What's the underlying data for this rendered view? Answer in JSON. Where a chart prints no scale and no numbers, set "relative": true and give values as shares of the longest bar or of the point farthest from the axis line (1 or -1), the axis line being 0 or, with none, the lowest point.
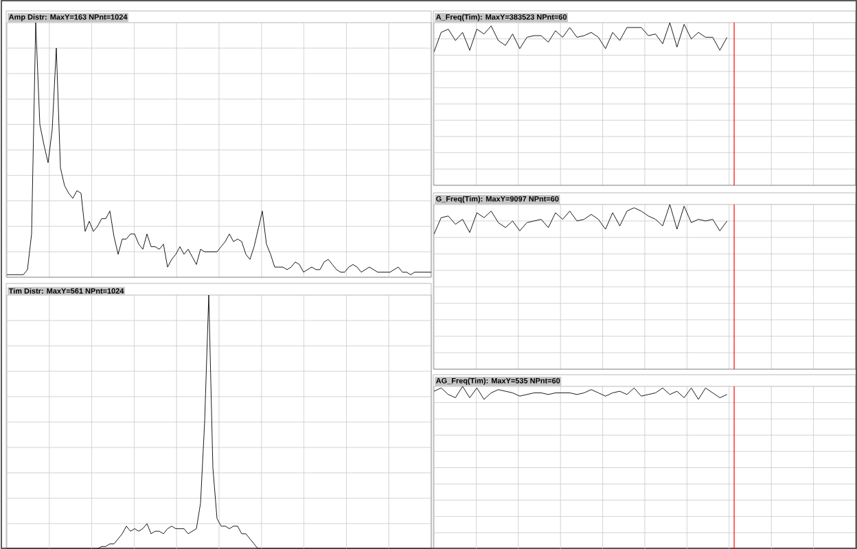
{
  "chart_data": [
    {
      "type": "line",
      "title": "Amp Distr: MaxY=163 NPnt=1024",
      "color": "#000000",
      "grid": true,
      "relative": true,
      "categories": [
        null,
        null,
        null,
        null,
        null,
        null,
        null,
        null,
        null,
        null,
        null,
        null,
        null,
        null,
        null,
        null,
        null,
        null,
        null,
        null,
        null,
        null,
        null,
        null,
        null,
        null,
        null,
        null,
        null,
        null,
        null,
        null,
        null,
        null,
        null,
        null,
        null,
        null,
        null,
        null,
        null,
        null,
        null,
        null,
        null,
        null,
        null,
        null,
        null,
        null,
        null,
        null,
        null,
        null,
        null,
        null,
        null,
        null,
        null,
        null,
        null,
        null,
        null,
        null,
        null,
        null,
        null,
        null,
        null,
        null,
        null,
        null,
        null,
        null,
        null,
        null,
        null,
        null,
        null,
        null,
        null,
        null,
        null,
        null,
        null,
        null,
        null,
        null,
        null,
        null,
        null,
        null,
        null,
        null,
        null,
        null,
        null,
        null,
        null,
        null,
        null,
        null,
        null,
        null
      ],
      "values": [
        0.01,
        0.01,
        0.01,
        0.01,
        0.01,
        0.03,
        0.17,
        1,
        0.6,
        0.52,
        0.45,
        0.58,
        0.9,
        0.43,
        0.36,
        0.33,
        0.31,
        0.34,
        0.33,
        0.18,
        0.22,
        0.18,
        0.2,
        0.23,
        0.23,
        0.26,
        0.16,
        0.09,
        0.15,
        0.15,
        0.17,
        0.17,
        0.13,
        0.11,
        0.17,
        0.12,
        0.12,
        0.11,
        0.13,
        0.04,
        0.07,
        0.09,
        0.12,
        0.09,
        0.11,
        0.08,
        0.05,
        0.11,
        0.1,
        0.1,
        0.1,
        0.1,
        0.12,
        0.14,
        0.17,
        0.14,
        0.15,
        0.14,
        0.09,
        0.07,
        0.12,
        0.19,
        0.26,
        0.13,
        0.09,
        0.04,
        0.04,
        0.04,
        0.03,
        0.04,
        0.06,
        0.05,
        0.02,
        0.03,
        0.04,
        0.03,
        0.03,
        0.06,
        0.07,
        0.05,
        0.03,
        0.02,
        0.02,
        0.04,
        0.05,
        0.04,
        0.02,
        0.03,
        0.04,
        0.03,
        0.02,
        0.02,
        0.02,
        0.02,
        0.03,
        0.04,
        0.02,
        0.02,
        0.01,
        0.02,
        0.02,
        0.02,
        0.02,
        0.02
      ]
    },
    {
      "type": "line",
      "title": "Tim Distr: MaxY=561 NPnt=1024",
      "color": "#000000",
      "grid": true,
      "relative": true,
      "categories": [
        null,
        null,
        null,
        null,
        null,
        null,
        null,
        null,
        null,
        null,
        null,
        null,
        null,
        null,
        null,
        null,
        null,
        null,
        null,
        null,
        null,
        null,
        null,
        null,
        null,
        null,
        null,
        null,
        null,
        null,
        null,
        null,
        null,
        null,
        null,
        null,
        null,
        null,
        null,
        null,
        null,
        null,
        null,
        null,
        null,
        null,
        null,
        null,
        null,
        null,
        null,
        null,
        null,
        null,
        null,
        null,
        null,
        null,
        null,
        null,
        null,
        null,
        null,
        null,
        null,
        null,
        null,
        null,
        null,
        null,
        null,
        null,
        null,
        null,
        null,
        null,
        null,
        null,
        null,
        null,
        null,
        null,
        null,
        null,
        null,
        null,
        null,
        null,
        null,
        null,
        null,
        null,
        null,
        null,
        null,
        null,
        null,
        null,
        null,
        null,
        null,
        null,
        null,
        null
      ],
      "values": [
        0,
        0,
        0,
        0,
        0,
        0,
        0,
        0,
        0,
        0,
        0,
        0,
        0,
        0,
        0,
        0,
        0,
        0,
        0,
        0,
        0,
        0,
        0,
        0.01,
        0.01,
        0.02,
        0.02,
        0.04,
        0.06,
        0.09,
        0.07,
        0.08,
        0.07,
        0.08,
        0.1,
        0.06,
        0.07,
        0.07,
        0.06,
        0.08,
        0.09,
        0.08,
        0.08,
        0.08,
        0.06,
        0.07,
        0.08,
        0.18,
        0.5,
        1,
        0.32,
        0.12,
        0.09,
        0.09,
        0.08,
        0.09,
        0.09,
        0.06,
        0.06,
        0.04,
        0.02,
        0,
        0,
        0,
        0,
        0,
        0,
        0,
        0,
        0,
        0,
        0,
        0,
        0,
        0,
        0,
        0,
        0,
        0,
        0,
        0,
        0,
        0,
        0,
        0,
        0,
        0,
        0,
        0,
        0,
        0,
        0,
        0,
        0,
        0,
        0,
        0,
        0,
        0,
        0,
        0,
        0,
        0,
        0
      ]
    },
    {
      "type": "line",
      "title": "A_Freq(Tim): MaxY=383523 NPnt=60",
      "color": "#000000",
      "grid": true,
      "relative": true,
      "categories": [
        null,
        null,
        null,
        null,
        null,
        null,
        null,
        null,
        null,
        null,
        null,
        null,
        null,
        null,
        null,
        null,
        null,
        null,
        null,
        null,
        null,
        null,
        null,
        null,
        null,
        null,
        null,
        null,
        null,
        null,
        null,
        null,
        null,
        null,
        null,
        null,
        null,
        null,
        null,
        null,
        null,
        null,
        null,
        null,
        null,
        null,
        null,
        null,
        null,
        null,
        null,
        null,
        null,
        null,
        null,
        null,
        null,
        null,
        null,
        null
      ],
      "values": [
        0.82,
        0.94,
        0.96,
        0.89,
        0.94,
        0.83,
        0.96,
        0.93,
        0.98,
        0.89,
        0.86,
        0.93,
        0.84,
        0.91,
        0.92,
        0.92,
        0.88,
        0.95,
        0.91,
        0.97,
        0.91,
        0.92,
        0.94,
        0.91,
        0.84,
        0.94,
        0.89,
        0.97,
        0.97,
        0.97,
        0.92,
        0.93,
        0.87,
        1,
        0.85,
        0.99,
        0.9,
        0.94,
        0.91,
        0.91,
        0.83,
        0.91,
        null,
        null,
        null,
        null,
        null,
        null,
        null,
        null,
        null,
        null,
        null,
        null,
        null,
        null,
        null,
        null,
        null,
        null
      ]
    },
    {
      "type": "line",
      "title": "G_Freq(Tim): MaxY=9097 NPnt=60",
      "color": "#000000",
      "grid": true,
      "relative": true,
      "categories": [
        null,
        null,
        null,
        null,
        null,
        null,
        null,
        null,
        null,
        null,
        null,
        null,
        null,
        null,
        null,
        null,
        null,
        null,
        null,
        null,
        null,
        null,
        null,
        null,
        null,
        null,
        null,
        null,
        null,
        null,
        null,
        null,
        null,
        null,
        null,
        null,
        null,
        null,
        null,
        null,
        null,
        null,
        null,
        null,
        null,
        null,
        null,
        null,
        null,
        null,
        null,
        null,
        null,
        null,
        null,
        null,
        null,
        null,
        null,
        null
      ],
      "values": [
        0.82,
        0.92,
        0.93,
        0.88,
        0.91,
        0.83,
        0.95,
        0.92,
        0.96,
        0.89,
        0.86,
        0.9,
        0.84,
        0.89,
        0.9,
        0.91,
        0.86,
        0.95,
        0.91,
        0.96,
        0.9,
        0.91,
        0.94,
        0.91,
        0.85,
        0.95,
        0.87,
        0.96,
        0.98,
        0.96,
        0.93,
        0.91,
        0.87,
        1,
        0.85,
        0.99,
        0.89,
        0.91,
        0.9,
        0.91,
        0.84,
        0.9,
        null,
        null,
        null,
        null,
        null,
        null,
        null,
        null,
        null,
        null,
        null,
        null,
        null,
        null,
        null,
        null,
        null,
        null
      ]
    },
    {
      "type": "line",
      "title": "AG_Freq(Tim): MaxY=535 NPnt=60",
      "color": "#000000",
      "grid": true,
      "relative": true,
      "categories": [
        null,
        null,
        null,
        null,
        null,
        null,
        null,
        null,
        null,
        null,
        null,
        null,
        null,
        null,
        null,
        null,
        null,
        null,
        null,
        null,
        null,
        null,
        null,
        null,
        null,
        null,
        null,
        null,
        null,
        null,
        null,
        null,
        null,
        null,
        null,
        null,
        null,
        null,
        null,
        null,
        null,
        null,
        null,
        null,
        null,
        null,
        null,
        null,
        null,
        null,
        null,
        null,
        null,
        null,
        null,
        null,
        null,
        null,
        null,
        null
      ],
      "values": [
        0.97,
        0.99,
        0.95,
        0.93,
        1,
        0.93,
        0.99,
        0.92,
        0.96,
        0.98,
        0.97,
        0.96,
        0.94,
        0.95,
        0.96,
        0.96,
        0.95,
        0.96,
        0.96,
        0.96,
        0.95,
        0.96,
        0.98,
        0.96,
        0.94,
        0.96,
        0.97,
        0.95,
        0.99,
        0.94,
        0.95,
        0.96,
        0.99,
        0.95,
        0.97,
        0.93,
        0.99,
        0.92,
        0.99,
        0.96,
        0.93,
        0.95,
        null,
        null,
        null,
        null,
        null,
        null,
        null,
        null,
        null,
        null,
        null,
        null,
        null,
        null,
        null,
        null,
        null,
        null
      ]
    }
  ]
}
